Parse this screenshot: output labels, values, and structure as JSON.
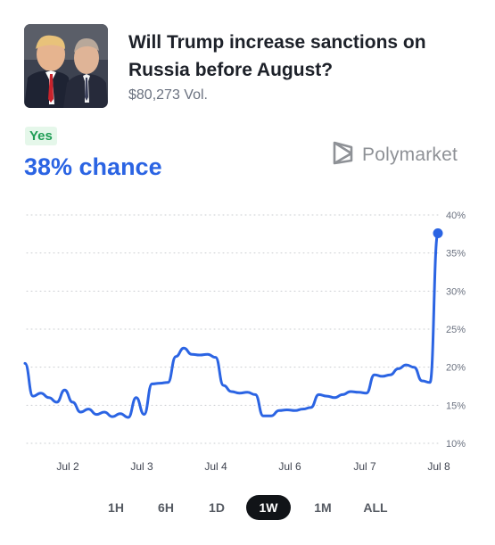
{
  "market": {
    "title": "Will Trump increase sanctions on Russia before August?",
    "volume": "$80,273 Vol.",
    "outcome": "Yes",
    "chance": "38% chance"
  },
  "brand": {
    "name": "Polymarket",
    "icon": "polymarket-logo-icon"
  },
  "timeframes": [
    "1H",
    "6H",
    "1D",
    "1W",
    "1M",
    "ALL"
  ],
  "active_timeframe": "1W",
  "colors": {
    "line": "#2b64e3",
    "yes_text": "#1f9d55",
    "yes_bg": "#e5f7ea",
    "active_tab": "#111418"
  },
  "chart_data": {
    "type": "line",
    "x_unit": "days since Jul 1",
    "x_tick_labels": [
      "Jul 2",
      "Jul 3",
      "Jul 4",
      "Jul 6",
      "Jul 7",
      "Jul 8"
    ],
    "y_tick_labels": [
      "10%",
      "15%",
      "20%",
      "25%",
      "30%",
      "35%",
      "40%"
    ],
    "ylim": [
      10,
      40
    ],
    "grid": true,
    "series": [
      {
        "values": [
          20.5,
          16.2,
          16.6,
          16.0,
          15.4,
          17.0,
          15.4,
          14.1,
          14.5,
          13.8,
          14.1,
          13.5,
          13.9,
          13.4,
          16.0,
          13.8,
          17.8,
          17.9,
          18.0,
          21.4,
          22.5,
          21.7,
          21.6,
          21.7,
          21.3,
          17.6,
          16.8,
          16.6,
          16.7,
          16.4,
          13.6,
          13.6,
          14.3,
          14.4,
          14.3,
          14.5,
          14.7,
          16.4,
          16.2,
          16.0,
          16.4,
          16.8,
          16.7,
          16.6,
          19.0,
          18.8,
          19.0,
          19.8,
          20.3,
          20.0,
          18.2,
          18.0,
          37.6
        ]
      }
    ]
  }
}
